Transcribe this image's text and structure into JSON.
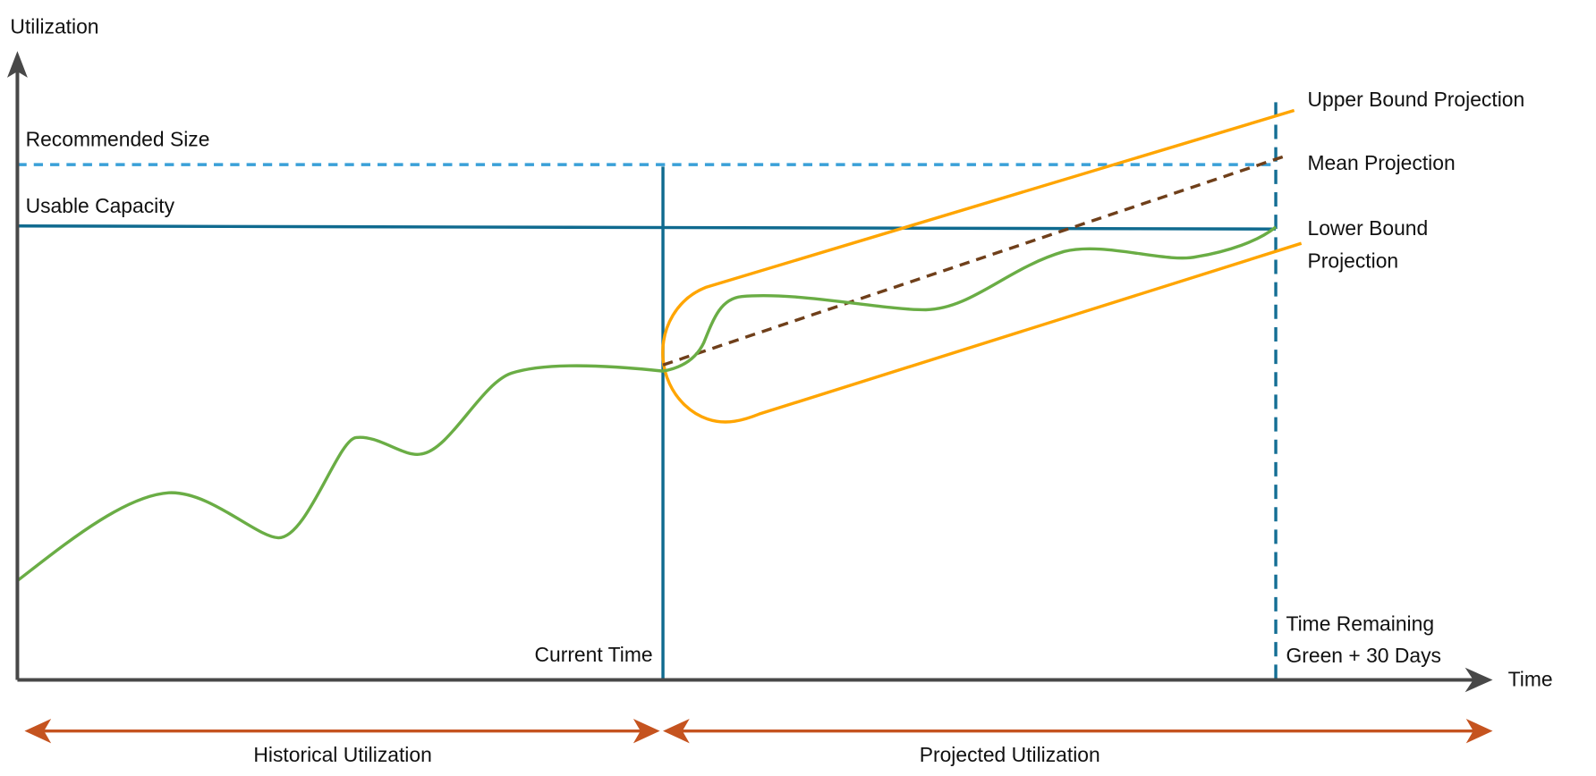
{
  "axes": {
    "y_label": "Utilization",
    "x_label": "Time"
  },
  "lines": {
    "recommended_size": "Recommended Size",
    "usable_capacity": "Usable Capacity",
    "current_time": "Current Time",
    "time_remaining_line1": "Time Remaining",
    "time_remaining_line2": "Green + 30 Days"
  },
  "projections": {
    "upper": "Upper Bound Projection",
    "mean": "Mean Projection",
    "lower_line1": "Lower Bound",
    "lower_line2": "Projection"
  },
  "periods": {
    "historical": "Historical Utilization",
    "projected": "Projected Utilization"
  },
  "colors": {
    "axis": "#484848",
    "recommended": "#3aa0d8",
    "capacity": "#0f6a8f",
    "projection_bounds": "#ffa500",
    "mean": "#6f3f1a",
    "utilization": "#6aad45",
    "period_arrows": "#c5531f"
  }
}
